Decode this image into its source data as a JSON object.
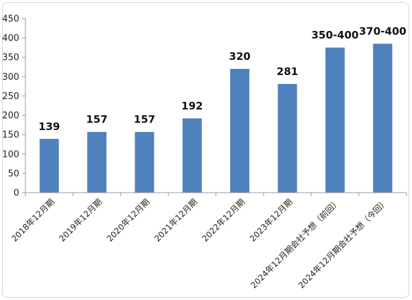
{
  "chart_data": {
    "type": "bar",
    "categories": [
      "2018年12月期",
      "2019年12月期",
      "2020年12月期",
      "2021年12月期",
      "2022年12月期",
      "2023年12月期",
      "2024年12月期会社予想（前回）",
      "2024年12月期会社予想（今回）"
    ],
    "values": [
      139,
      157,
      157,
      192,
      320,
      281,
      375,
      385
    ],
    "data_labels": [
      "139",
      "157",
      "157",
      "192",
      "320",
      "281",
      "350-400",
      "370-400"
    ],
    "ylim": [
      0,
      450
    ],
    "yticks": [
      0,
      50,
      100,
      150,
      200,
      250,
      300,
      350,
      400,
      450
    ],
    "grid": false,
    "legend": "none",
    "bar_color": "#4f81bd",
    "axis_color": "#999999"
  }
}
